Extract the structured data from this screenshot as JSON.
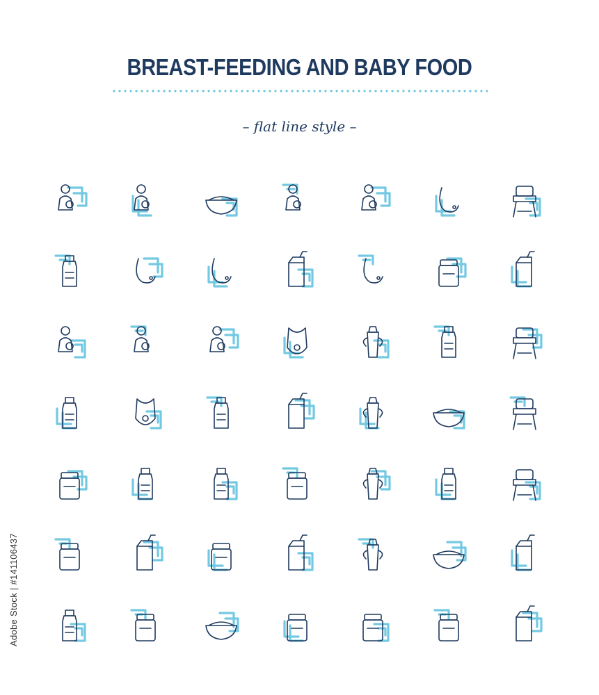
{
  "header": {
    "title": "BREAST-FEEDING AND BABY FOOD",
    "subtitle": "– flat line style –"
  },
  "watermark": {
    "stock_id": "Adobe Stock | #141106437"
  },
  "colors": {
    "line": "#1f3a5f",
    "accent": "#5bc0de",
    "background": "#ffffff"
  },
  "icons": [
    "mother-holding-baby-icon",
    "mother-baby-sling-icon",
    "lying-breastfeeding-icon",
    "mother-breastfeeding-icon",
    "baby-suckling-icon",
    "breast-profile-icon",
    "nursing-bra-icon",
    "manual-breast-pump-icon",
    "breast-pump-in-use-icon",
    "breast-milk-drop-icon",
    "electric-breast-pump-icon",
    "nipple-shield-icon",
    "nipple-cream-jar-icon",
    "diet-clipboard-timer-icon",
    "baby-bottle-feeding-icon",
    "baby-spoon-feeding-icon",
    "baby-profile-icon",
    "baby-bib-icon",
    "sippy-cup-icon",
    "spoon-fork-icon",
    "baby-in-high-chair-icon",
    "feeding-syringe-icon",
    "bib-strawberry-icon",
    "dropper-icon",
    "bottle-sterilizer-icon",
    "pacifier-icon",
    "porridge-bowl-spoon-icon",
    "high-chair-icon",
    "formula-can-scoop-icon",
    "baby-bottle-icon",
    "bottle-with-spoon-icon",
    "goat-milk-formula-icon",
    "sippy-cup-handles-icon",
    "bottle-timer-icon",
    "folding-high-chair-icon",
    "jar-and-spoon-icon",
    "apple-juice-box-icon",
    "jar-pumpkin-icon",
    "apple-puree-box-icon",
    "goat-milk-glass-icon",
    "steaming-porridge-icon",
    "banana-pouch-icon",
    "milk-bottle-carrot-icon",
    "jar-chicken-icon",
    "cereal-tub-spoon-icon",
    "jar-pear-icon",
    "jar-apple-icon",
    "jar-carrot-icon",
    "juice-box-pumpkin-icon"
  ]
}
